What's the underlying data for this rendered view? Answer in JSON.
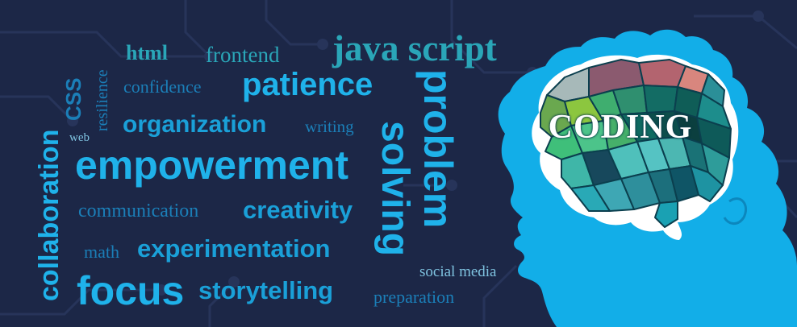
{
  "banner": {
    "brain_label": "CODING",
    "colors": {
      "background": "#1c2747",
      "silhouette": "#12aee8",
      "accent_light": "#1fb2ea",
      "accent_dark": "#1b7fb8",
      "teal": "#2aa6b8"
    },
    "words": {
      "html": "html",
      "frontend": "frontend",
      "javascript": "java script",
      "css": "CSS",
      "resilience": "resilience",
      "confidence": "confidence",
      "patience": "patience",
      "problem": "problem",
      "solving": "solving",
      "organization": "organization",
      "writing": "writing",
      "web": "web",
      "collaboration": "collaboration",
      "empowerment": "empowerment",
      "communication": "communication",
      "creativity": "creativity",
      "math": "math",
      "experimentation": "experimentation",
      "social_media": "social media",
      "focus": "focus",
      "storytelling": "storytelling",
      "preparation": "preparation"
    }
  }
}
